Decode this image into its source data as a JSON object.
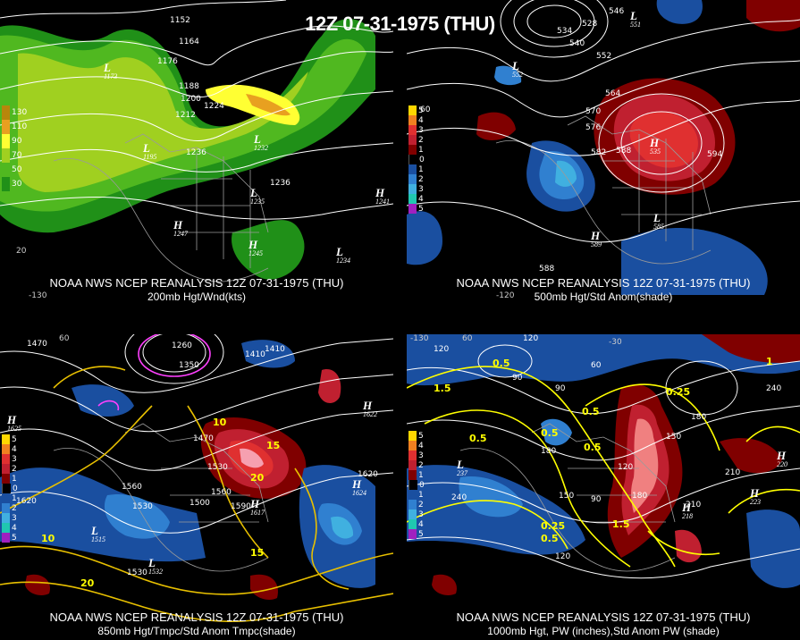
{
  "title": "12Z 07-31-1975 (THU)",
  "panels": {
    "p200": {
      "caption1": "NOAA NWS NCEP REANALYSIS 12Z 07-31-1975 (THU)",
      "caption2": "200mb Hgt/Wnd(kts)",
      "legend": [
        {
          "label": "130",
          "color": "#b8860b"
        },
        {
          "label": "110",
          "color": "#e8a020"
        },
        {
          "label": "90",
          "color": "#ffff33"
        },
        {
          "label": "70",
          "color": "#a0d020"
        },
        {
          "label": "50",
          "color": "#50b820"
        },
        {
          "label": "30",
          "color": "#209018"
        }
      ],
      "legend_top": "",
      "contour_labels": [
        "1152",
        "1164",
        "1176",
        "1188",
        "1200",
        "1212",
        "1224",
        "1236",
        "1236",
        "1232",
        "1235",
        "1241",
        "1245",
        "1247",
        "1234",
        "1173",
        "1195"
      ],
      "axis_labels": [
        "20",
        "-130"
      ]
    },
    "p500": {
      "caption1": "NOAA NWS NCEP REANALYSIS 12Z 07-31-1975 (THU)",
      "caption2": "500mb Hgt/Std Anom(shade)",
      "legend": [
        {
          "label": "5",
          "color": "#ffd700"
        },
        {
          "label": "4",
          "color": "#f08020"
        },
        {
          "label": "3",
          "color": "#e03030"
        },
        {
          "label": "2",
          "color": "#c02030"
        },
        {
          "label": "1",
          "color": "#800000"
        },
        {
          "label": "0",
          "color": "#000000"
        },
        {
          "label": "1",
          "color": "#1a4fa0"
        },
        {
          "label": "2",
          "color": "#3080d0"
        },
        {
          "label": "3",
          "color": "#40b0e0"
        },
        {
          "label": "4",
          "color": "#20c8b0"
        },
        {
          "label": "5",
          "color": "#a020c0"
        }
      ],
      "legend_top": "60",
      "contour_labels": [
        "546",
        "534",
        "528",
        "540",
        "552",
        "564",
        "570",
        "576",
        "582",
        "588",
        "594",
        "588",
        "552",
        "535",
        "589",
        "585",
        "551",
        "570",
        "582"
      ],
      "axis_labels": [
        "-120"
      ]
    },
    "p850": {
      "caption1": "NOAA NWS NCEP REANALYSIS 12Z 07-31-1975 (THU)",
      "caption2": "850mb Hgt/Tmpc/Std Anom Tmpc(shade)",
      "legend": [
        {
          "label": "5",
          "color": "#ffd700"
        },
        {
          "label": "4",
          "color": "#f08020"
        },
        {
          "label": "3",
          "color": "#e03030"
        },
        {
          "label": "2",
          "color": "#c02030"
        },
        {
          "label": "1",
          "color": "#800000"
        },
        {
          "label": "0",
          "color": "#000000"
        },
        {
          "label": "1",
          "color": "#1a4fa0"
        },
        {
          "label": "2",
          "color": "#3080d0"
        },
        {
          "label": "3",
          "color": "#40b0e0"
        },
        {
          "label": "4",
          "color": "#20c8b0"
        },
        {
          "label": "5",
          "color": "#a020c0"
        }
      ],
      "legend_top": "",
      "contour_labels": [
        "1470",
        "1260",
        "1350",
        "1410",
        "1410",
        "1470",
        "1530",
        "1560",
        "1530",
        "1500",
        "1560",
        "1590",
        "1620",
        "1620",
        "1617",
        "1515",
        "1530",
        "1532",
        "1624",
        "1625",
        "1622"
      ],
      "temp_labels": [
        "10",
        "15",
        "20",
        "15",
        "10",
        "20"
      ],
      "axis_labels": [
        "60"
      ]
    },
    "p1000": {
      "caption1": "NOAA NWS NCEP REANALYSIS 12Z 07-31-1975 (THU)",
      "caption2": "1000mb Hgt, PW (inches),Std Anom PW (shade)",
      "legend": [
        {
          "label": "5",
          "color": "#ffd700"
        },
        {
          "label": "4",
          "color": "#f08020"
        },
        {
          "label": "3",
          "color": "#e03030"
        },
        {
          "label": "2",
          "color": "#c02030"
        },
        {
          "label": "1",
          "color": "#800000"
        },
        {
          "label": "0",
          "color": "#000000"
        },
        {
          "label": "1",
          "color": "#1a4fa0"
        },
        {
          "label": "2",
          "color": "#3080d0"
        },
        {
          "label": "3",
          "color": "#40b0e0"
        },
        {
          "label": "4",
          "color": "#20c8b0"
        },
        {
          "label": "5",
          "color": "#a020c0"
        }
      ],
      "legend_top": "",
      "contour_labels": [
        "120",
        "90",
        "90",
        "60",
        "120",
        "180",
        "150",
        "120",
        "180",
        "210",
        "240",
        "240",
        "210",
        "180",
        "150",
        "120",
        "90",
        "223",
        "220",
        "218",
        "237"
      ],
      "pw_labels": [
        "0.5",
        "0.25",
        "0.5",
        "0.5",
        "0.5",
        "0.5",
        "0.25",
        "0.5",
        "1.5",
        "1.5",
        "1"
      ],
      "axis_labels": [
        "-130",
        "60",
        "-30"
      ]
    }
  },
  "colors": {
    "white_contour": "#ffffff",
    "yellow_contour": "#ffff00",
    "magenta_contour": "#ff40ff",
    "map_lines": "#9a9a9a"
  }
}
